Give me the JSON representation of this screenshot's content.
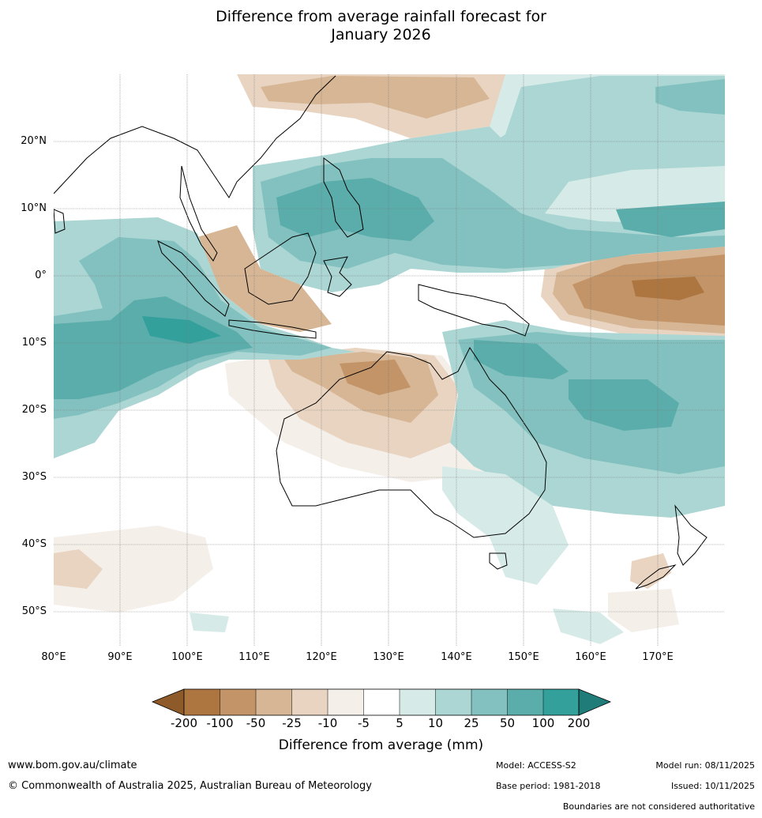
{
  "title": {
    "line1": "Difference from average rainfall forecast for",
    "line2": "January 2026"
  },
  "axes": {
    "lat_labels": [
      "20°N",
      "10°N",
      "0°",
      "10°S",
      "20°S",
      "30°S",
      "40°S",
      "50°S"
    ],
    "lon_labels": [
      "80°E",
      "90°E",
      "100°E",
      "110°E",
      "120°E",
      "130°E",
      "140°E",
      "150°E",
      "160°E",
      "170°E"
    ]
  },
  "colorbar": {
    "ticks": [
      "-200",
      "-100",
      "-50",
      "-25",
      "-10",
      "-5",
      "5",
      "10",
      "25",
      "50",
      "100",
      "200"
    ],
    "colors": [
      "#8e5a2a",
      "#ad753f",
      "#c39467",
      "#d6b694",
      "#e8d4c0",
      "#f4efe9",
      "#ffffff",
      "#d6ebe8",
      "#abd6d3",
      "#82c1bf",
      "#5aadab",
      "#33a09b",
      "#207c78"
    ],
    "label": "Difference from average (mm)"
  },
  "footer": {
    "website": "www.bom.gov.au/climate",
    "copyright": "© Commonwealth of Australia 2025, Australian Bureau of Meteorology",
    "model": "Model: ACCESS-S2",
    "base_period": "Base period: 1981-2018",
    "model_run": "Model run: 08/11/2025",
    "issued": "Issued: 10/11/2025",
    "disclaimer": "Boundaries are not considered authoritative"
  }
}
